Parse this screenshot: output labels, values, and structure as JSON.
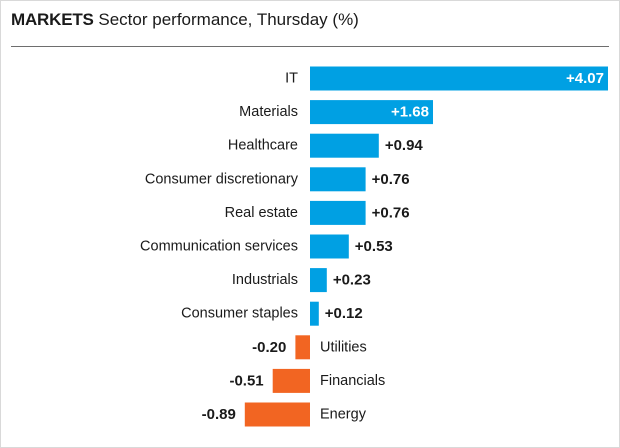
{
  "title": {
    "kicker": "MARKETS",
    "text": "Sector performance, Thursday (%)"
  },
  "colors": {
    "positive": "#00a0e3",
    "negative": "#f26522",
    "text": "#1a1a1a",
    "rule": "#6e6e6e"
  },
  "chart_data": {
    "type": "bar",
    "orientation": "horizontal",
    "title": "Sector performance, Thursday (%)",
    "categories": [
      "IT",
      "Materials",
      "Healthcare",
      "Consumer discretionary",
      "Real estate",
      "Communication services",
      "Industrials",
      "Consumer staples",
      "Utilities",
      "Financials",
      "Energy"
    ],
    "values": [
      4.07,
      1.68,
      0.94,
      0.76,
      0.76,
      0.53,
      0.23,
      0.12,
      -0.2,
      -0.51,
      -0.89
    ],
    "value_labels": [
      "+4.07",
      "+1.68",
      "+0.94",
      "+0.76",
      "+0.76",
      "+0.53",
      "+0.23",
      "+0.12",
      "-0.20",
      "-0.51",
      "-0.89"
    ],
    "xlim": [
      -1.0,
      4.07
    ],
    "grid": false,
    "legend": "none"
  }
}
